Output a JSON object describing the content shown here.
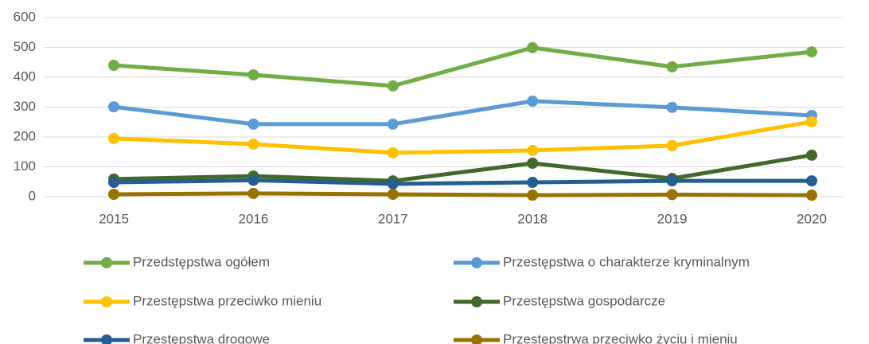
{
  "chart_data": {
    "type": "line",
    "categories": [
      "2015",
      "2016",
      "2017",
      "2018",
      "2019",
      "2020"
    ],
    "series": [
      {
        "name": "Przedstępstwa ogółem",
        "color": "#70ad47",
        "values": [
          440,
          408,
          371,
          499,
          435,
          485
        ]
      },
      {
        "name": "Przestępstwa o charakterze kryminalnym",
        "color": "#5b9bd5",
        "values": [
          301,
          243,
          243,
          320,
          299,
          272
        ]
      },
      {
        "name": "Przestępstwa przeciwko mieniu",
        "color": "#ffc000",
        "values": [
          195,
          176,
          147,
          155,
          171,
          251
        ]
      },
      {
        "name": "Przestępstwa gospodarcze",
        "color": "#43682b",
        "values": [
          59,
          69,
          53,
          112,
          61,
          139
        ]
      },
      {
        "name": "Przestępstwa drogowe",
        "color": "#255e91",
        "values": [
          48,
          55,
          43,
          48,
          53,
          53
        ]
      },
      {
        "name": "Przestępstrwa przeciwko życiu i mieniu",
        "color": "#997300",
        "values": [
          8,
          11,
          8,
          5,
          7,
          5
        ]
      }
    ],
    "ylim": [
      0,
      600
    ],
    "yticks": [
      0,
      100,
      200,
      300,
      400,
      500,
      600
    ],
    "grid": true
  }
}
